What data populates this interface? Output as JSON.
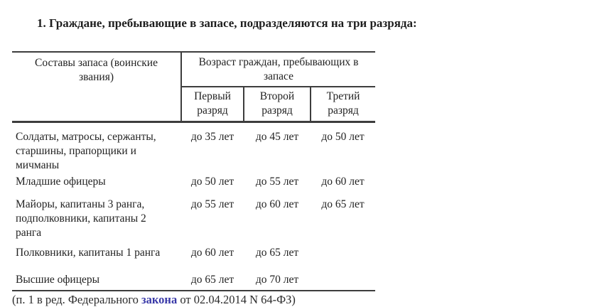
{
  "page": {
    "title": "1. Граждане, пребывающие в запасе, подразделяются на три разряда:"
  },
  "table": {
    "header": {
      "left": "Составы запаса (воинские\nзвания)",
      "right": "Возраст граждан, пребывающих в\nзапасе",
      "sub": [
        "Первый\nразряд",
        "Второй\nразряд",
        "Третий\nразряд"
      ]
    },
    "rows": [
      {
        "rank": "Солдаты, матросы, сержанты,\nстаршины, прапорщики и\nмичманы",
        "first": "до 35 лет",
        "second": "до 45 лет",
        "third": "до 50 лет"
      },
      {
        "rank": "Младшие офицеры",
        "first": "до 50 лет",
        "second": "до 55 лет",
        "third": "до 60 лет"
      },
      {
        "rank": "Майоры, капитаны 3 ранга,\nподполковники, капитаны 2\nранга",
        "first": "до 55 лет",
        "second": "до 60 лет",
        "third": "до 65 лет"
      },
      {
        "rank": "Полковники, капитаны 1 ранга",
        "first": "до 60 лет",
        "second": "до 65 лет",
        "third": ""
      },
      {
        "rank": "Высшие офицеры",
        "first": "до 65 лет",
        "second": "до 70 лет",
        "third": ""
      }
    ]
  },
  "footnote": {
    "prefix": "(п. 1 в ред. Федерального ",
    "link_text": "закона",
    "suffix": " от 02.04.2014 N 64-ФЗ)"
  },
  "colors": {
    "text": "#222222",
    "border": "#3d3d3d",
    "link": "#3939a8",
    "background": "#ffffff"
  }
}
